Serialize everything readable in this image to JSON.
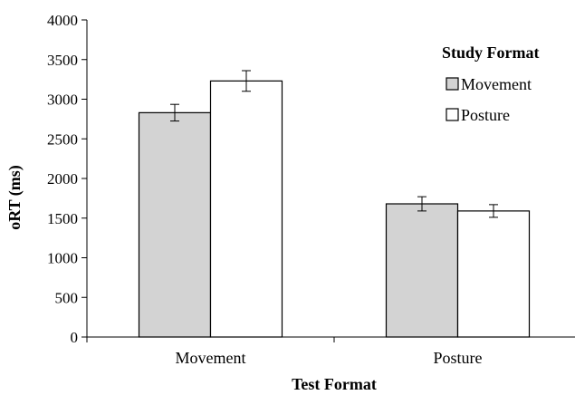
{
  "chart_data": {
    "type": "bar",
    "xlabel": "Test Format",
    "ylabel": "oRT (ms)",
    "ylim": [
      0,
      4000
    ],
    "yticks": [
      0,
      500,
      1000,
      1500,
      2000,
      2500,
      3000,
      3500,
      4000
    ],
    "categories": [
      "Movement",
      "Posture"
    ],
    "legend": {
      "title": "Study Format",
      "placement": "top-right"
    },
    "series": [
      {
        "name": "Movement",
        "values": [
          2830,
          1680
        ],
        "errors": [
          105,
          90
        ],
        "color": "#d3d3d3"
      },
      {
        "name": "Posture",
        "values": [
          3230,
          1590
        ],
        "errors": [
          130,
          80
        ],
        "color": "#ffffff"
      }
    ],
    "grid": false
  }
}
